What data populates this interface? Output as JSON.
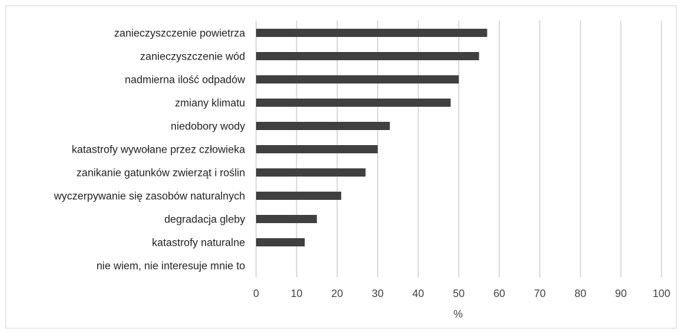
{
  "chart_data": {
    "type": "bar",
    "orientation": "horizontal",
    "categories": [
      "zanieczyszczenie powietrza",
      "zanieczyszczenie wód",
      "nadmierna ilość odpadów",
      "zmiany klimatu",
      "niedobory wody",
      "katastrofy wywołane przez człowieka",
      "zanikanie gatunków zwierząt i roślin",
      "wyczerpywanie się zasobów naturalnych",
      "degradacja gleby",
      "katastrofy naturalne",
      "nie wiem, nie interesuje mnie to"
    ],
    "values": [
      57,
      55,
      50,
      48,
      33,
      30,
      27,
      21,
      15,
      12,
      0
    ],
    "xlabel": "%",
    "ylabel": "",
    "xlim": [
      0,
      100
    ],
    "xticks": [
      0,
      10,
      20,
      30,
      40,
      50,
      60,
      70,
      80,
      90,
      100
    ],
    "grid": "vertical",
    "legend": "none",
    "bar_color": "#404040",
    "grid_color": "#c8c8c8"
  }
}
